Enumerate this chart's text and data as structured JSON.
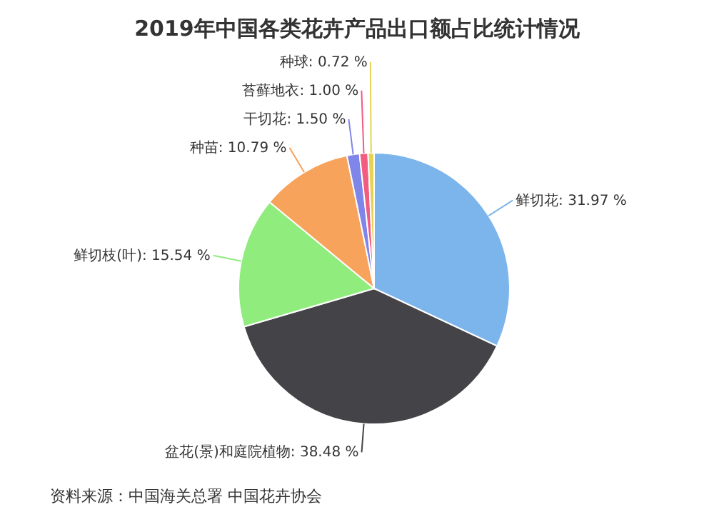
{
  "chart_data": {
    "type": "pie",
    "title": "2019年中国各类花卉产品出口额占比统计情况",
    "categories": [
      "鲜切花",
      "盆花(景)和庭院植物",
      "鲜切枝(叶)",
      "种苗",
      "干切花",
      "苔藓地衣",
      "种球"
    ],
    "values": [
      31.97,
      38.48,
      15.54,
      10.79,
      1.5,
      1.0,
      0.72
    ],
    "colors": [
      "#7cb5ec",
      "#434348",
      "#90ed7d",
      "#f7a35c",
      "#8085e9",
      "#f15c80",
      "#e4d354"
    ],
    "value_labels": [
      ": 31.97 %",
      ": 38.48 %",
      ": 15.54 %",
      ": 10.79 %",
      ": 1.50 %",
      ": 1.00 %",
      ": 0.72 %"
    ],
    "annotations": [
      "资料来源：中国海关总署 中国花卉协会"
    ]
  }
}
